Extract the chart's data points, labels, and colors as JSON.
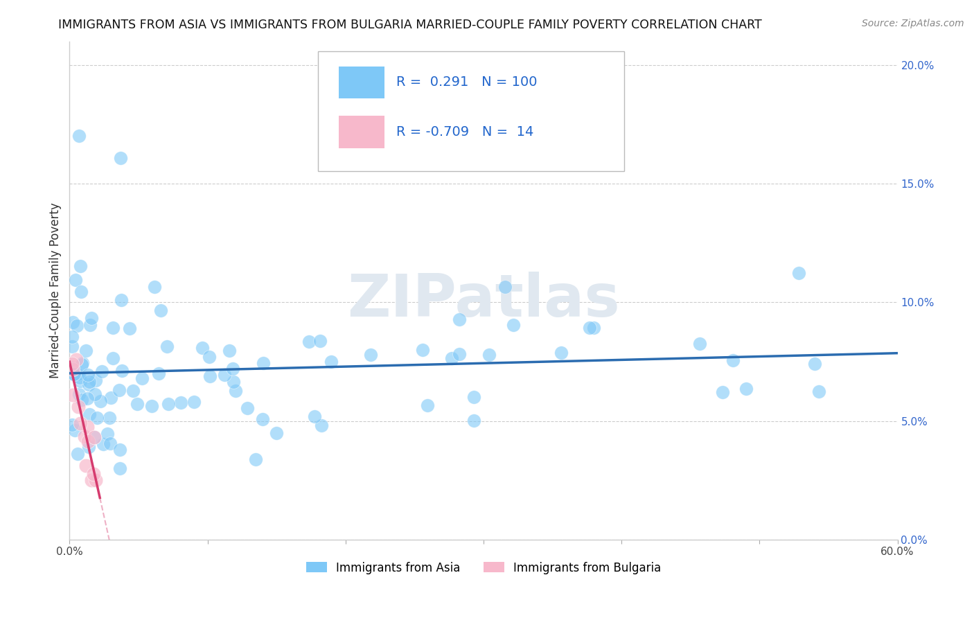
{
  "title": "IMMIGRANTS FROM ASIA VS IMMIGRANTS FROM BULGARIA MARRIED-COUPLE FAMILY POVERTY CORRELATION CHART",
  "source": "Source: ZipAtlas.com",
  "xlabel_label": "Immigrants from Asia",
  "ylabel_label": "Married-Couple Family Poverty",
  "xlim": [
    0.0,
    0.6
  ],
  "ylim": [
    0.0,
    0.21
  ],
  "xticks": [
    0.0,
    0.1,
    0.2,
    0.3,
    0.4,
    0.5,
    0.6
  ],
  "xtick_labels": [
    "0.0%",
    "",
    "",
    "",
    "",
    "",
    "60.0%"
  ],
  "yticks": [
    0.0,
    0.05,
    0.1,
    0.15,
    0.2
  ],
  "ytick_labels_right": [
    "0.0%",
    "5.0%",
    "10.0%",
    "15.0%",
    "20.0%"
  ],
  "asia_R": 0.291,
  "asia_N": 100,
  "bulgaria_R": -0.709,
  "bulgaria_N": 14,
  "asia_color": "#7ec8f7",
  "bulgaria_color": "#f7b8cb",
  "asia_line_color": "#2b6cb0",
  "bulgaria_line_color": "#d63b6e",
  "watermark_color": "#e0e8f0"
}
